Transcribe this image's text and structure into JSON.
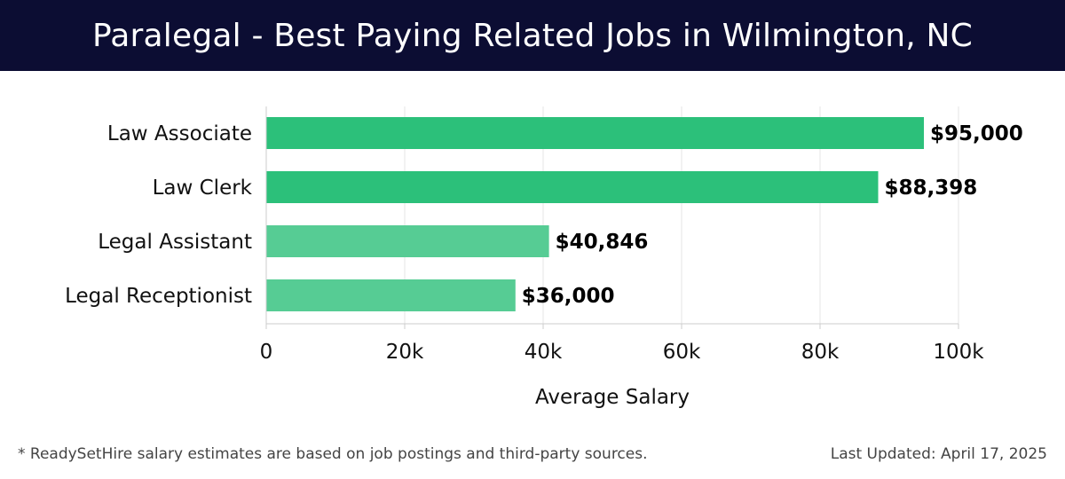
{
  "header": {
    "title": "Paralegal - Best Paying Related Jobs in Wilmington, NC"
  },
  "footer": {
    "note": "* ReadySetHire salary estimates are based on job postings and third-party sources.",
    "updated": "Last Updated: April 17, 2025"
  },
  "colors": {
    "header_bg": "#0c0d33",
    "bar_primary": "#2cc07a",
    "bar_secondary": "#56cc94"
  },
  "chart_data": {
    "type": "bar",
    "orientation": "horizontal",
    "categories": [
      "Law Associate",
      "Law Clerk",
      "Legal Assistant",
      "Legal Receptionist"
    ],
    "values": [
      95000,
      88398,
      40846,
      36000
    ],
    "value_labels": [
      "$95,000",
      "$88,398",
      "$40,846",
      "$36,000"
    ],
    "bar_colors": [
      "#2cc07a",
      "#2cc07a",
      "#56cc94",
      "#56cc94"
    ],
    "xlabel": "Average Salary",
    "ylabel": "",
    "xlim": [
      0,
      100000
    ],
    "xticks": [
      0,
      20000,
      40000,
      60000,
      80000,
      100000
    ],
    "xtick_labels": [
      "0",
      "20k",
      "40k",
      "60k",
      "80k",
      "100k"
    ],
    "grid": true
  }
}
